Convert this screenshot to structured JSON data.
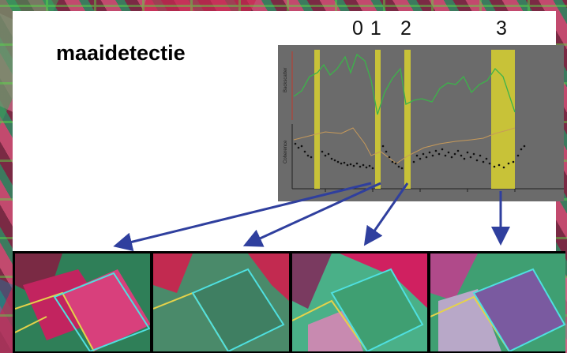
{
  "title": "maaidetectie",
  "markers": [
    "0 1",
    "2",
    "3"
  ],
  "chart": {
    "upper_axis_label": "Backscatter",
    "lower_axis_label": "Coherence"
  },
  "colors": {
    "chart_bg": "#6b6b6b",
    "highlight": "#c8c238",
    "green_line": "#3cb34a",
    "tan_line": "#c79a5a",
    "arrow": "#2f3f9e"
  },
  "thumbnails": [
    {
      "name": "mowing-image-0",
      "palette": [
        "#c2245f",
        "#2f7f58",
        "#d8407c"
      ]
    },
    {
      "name": "mowing-image-1",
      "palette": [
        "#3f7f62",
        "#c22a50",
        "#4a8a6a"
      ]
    },
    {
      "name": "mowing-image-2",
      "palette": [
        "#3f9f72",
        "#d02060",
        "#4ab088"
      ]
    },
    {
      "name": "mowing-image-3",
      "palette": [
        "#3f9f72",
        "#b04a8a",
        "#7a5aa0"
      ]
    }
  ]
}
